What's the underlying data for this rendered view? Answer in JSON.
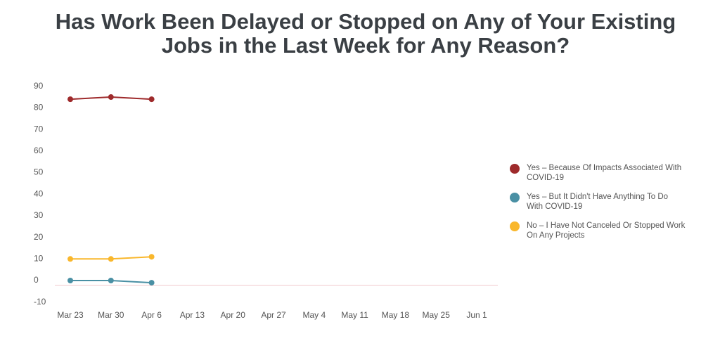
{
  "chart_data": {
    "type": "line",
    "title": "Has Work Been Delayed or Stopped on Any of Your Existing Jobs in the Last Week for Any Reason?",
    "categories": [
      "Mar 23",
      "Mar 30",
      "Apr 6",
      "Apr 13",
      "Apr 20",
      "Apr 27",
      "May 4",
      "May 11",
      "May 18",
      "May 25",
      "Jun 1"
    ],
    "series": [
      {
        "name": "Yes – Because Of Impacts Associated With COVID-19",
        "color": "#9e2a2b",
        "values": [
          84,
          85,
          84,
          null,
          null,
          null,
          null,
          null,
          null,
          null,
          null
        ]
      },
      {
        "name": "Yes – But It Didn't Have Anything To Do With COVID-19",
        "color": "#4a90a4",
        "values": [
          0,
          0,
          -1,
          null,
          null,
          null,
          null,
          null,
          null,
          null,
          null
        ]
      },
      {
        "name": "No – I Have Not Canceled Or Stopped Work On Any Projects",
        "color": "#f9b72c",
        "values": [
          10,
          10,
          11,
          null,
          null,
          null,
          null,
          null,
          null,
          null,
          null
        ]
      }
    ],
    "ylim": [
      -10,
      90
    ],
    "yticks": [
      -10,
      0,
      10,
      20,
      30,
      40,
      50,
      60,
      70,
      80,
      90
    ],
    "legend": "right"
  }
}
